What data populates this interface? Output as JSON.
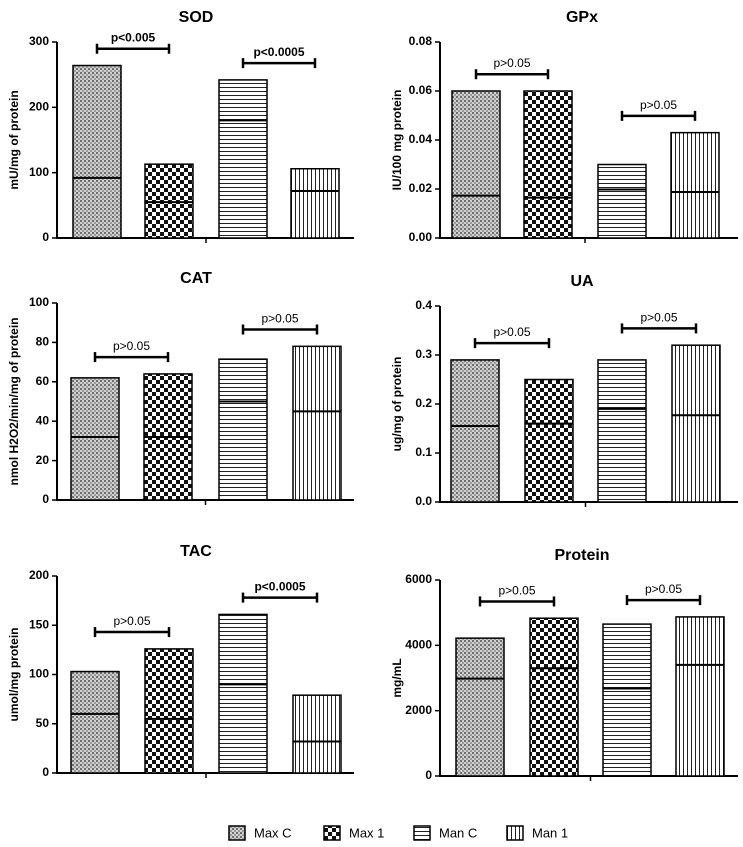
{
  "legend": [
    {
      "label": "Max C",
      "pattern": "dots"
    },
    {
      "label": "Max 1",
      "pattern": "checker"
    },
    {
      "label": "Man C",
      "pattern": "hlines"
    },
    {
      "label": "Man 1",
      "pattern": "vlines"
    }
  ],
  "chart_data": [
    {
      "type": "bar",
      "title": "SOD",
      "ylabel": "mU/mg of protein",
      "categories": [
        "Max C",
        "Max 1",
        "Man C",
        "Man 1"
      ],
      "values": [
        264,
        113,
        242,
        106
      ],
      "inner_lines": [
        92,
        55,
        180,
        72
      ],
      "ylim": [
        0,
        300
      ],
      "yticks": [
        "0",
        "100",
        "200",
        "300"
      ],
      "comparisons": [
        {
          "from": 0,
          "to": 1,
          "label": "p<0.005",
          "bold": true
        },
        {
          "from": 2,
          "to": 3,
          "label": "p<0.0005",
          "bold": true
        }
      ]
    },
    {
      "type": "bar",
      "title": "GPx",
      "ylabel": "IU/100 mg protein",
      "categories": [
        "Max C",
        "Max 1",
        "Man C",
        "Man 1"
      ],
      "values": [
        0.06,
        0.06,
        0.03,
        0.043
      ],
      "inner_lines": [
        0.0173,
        0.0165,
        0.0198,
        0.0188
      ],
      "ylim": [
        0,
        0.08
      ],
      "yticks": [
        "0.00",
        "0.02",
        "0.04",
        "0.06",
        "0.08"
      ],
      "comparisons": [
        {
          "from": 0,
          "to": 1,
          "label": "p>0.05",
          "bold": false
        },
        {
          "from": 2,
          "to": 3,
          "label": "p>0.05",
          "bold": false
        }
      ]
    },
    {
      "type": "bar",
      "title": "CAT",
      "ylabel": "nmol H2O2/min/mg of protein",
      "categories": [
        "Max C",
        "Max 1",
        "Man C",
        "Man 1"
      ],
      "values": [
        62,
        64,
        71.5,
        78
      ],
      "inner_lines": [
        32,
        32,
        50,
        45
      ],
      "ylim": [
        0,
        100
      ],
      "yticks": [
        "0",
        "20",
        "40",
        "60",
        "80",
        "100"
      ],
      "comparisons": [
        {
          "from": 0,
          "to": 1,
          "label": "p>0.05",
          "bold": false
        },
        {
          "from": 2,
          "to": 3,
          "label": "p>0.05",
          "bold": false
        }
      ]
    },
    {
      "type": "bar",
      "title": "UA",
      "ylabel": "ug/mg of protein",
      "categories": [
        "Max C",
        "Max 1",
        "Man C",
        "Man 1"
      ],
      "values": [
        0.29,
        0.25,
        0.29,
        0.32
      ],
      "inner_lines": [
        0.155,
        0.16,
        0.19,
        0.177
      ],
      "ylim": [
        0,
        0.4
      ],
      "yticks": [
        "0.0",
        "0.1",
        "0.2",
        "0.3",
        "0.4"
      ],
      "comparisons": [
        {
          "from": 0,
          "to": 1,
          "label": "p>0.05",
          "bold": false
        },
        {
          "from": 2,
          "to": 3,
          "label": "p>0.05",
          "bold": false
        }
      ]
    },
    {
      "type": "bar",
      "title": "TAC",
      "ylabel": "umol/mg protein",
      "categories": [
        "Max C",
        "Max 1",
        "Man C",
        "Man 1"
      ],
      "values": [
        103,
        126,
        161,
        79
      ],
      "inner_lines": [
        60,
        55,
        90,
        32
      ],
      "ylim": [
        0,
        200
      ],
      "yticks": [
        "0",
        "50",
        "100",
        "150",
        "200"
      ],
      "comparisons": [
        {
          "from": 0,
          "to": 1,
          "label": "p>0.05",
          "bold": false
        },
        {
          "from": 2,
          "to": 3,
          "label": "p<0.0005",
          "bold": true
        }
      ]
    },
    {
      "type": "bar",
      "title": "Protein",
      "ylabel": "mg/mL",
      "categories": [
        "Max C",
        "Max 1",
        "Man C",
        "Man 1"
      ],
      "values": [
        4220,
        4830,
        4650,
        4870
      ],
      "inner_lines": [
        2980,
        3300,
        2680,
        3400
      ],
      "ylim": [
        0,
        6000
      ],
      "yticks": [
        "0",
        "2000",
        "4000",
        "6000"
      ],
      "comparisons": [
        {
          "from": 0,
          "to": 1,
          "label": "p>0.05",
          "bold": false
        },
        {
          "from": 2,
          "to": 3,
          "label": "p>0.05",
          "bold": false
        }
      ]
    }
  ]
}
